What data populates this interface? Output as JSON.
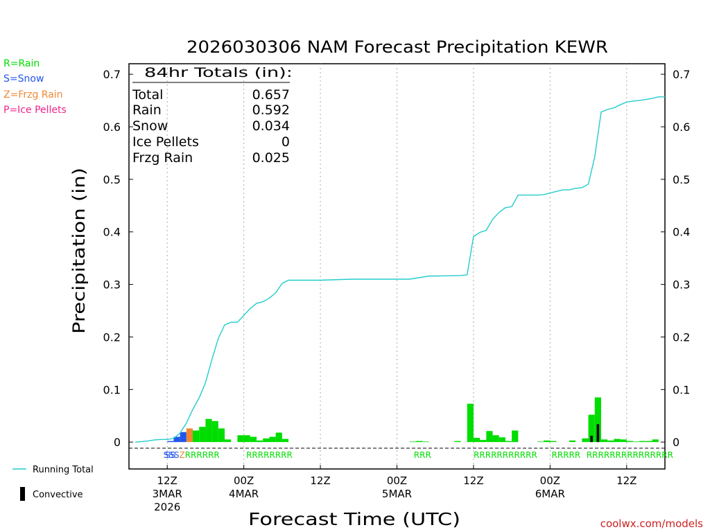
{
  "title": "2026030306 NAM Forecast Precipitation KEWR",
  "legend": {
    "rain": "R=Rain",
    "snow": "S=Snow",
    "frzg": "Z=Frzg Rain",
    "ice": "P=Ice Pellets",
    "running_total": "Running Total",
    "convective": "Convective"
  },
  "totals": {
    "header": "84hr Totals (in):",
    "rows": [
      {
        "label": "Total",
        "value": "0.657"
      },
      {
        "label": "Rain",
        "value": "0.592"
      },
      {
        "label": "Snow",
        "value": "0.034"
      },
      {
        "label": "Ice Pellets",
        "value": "0"
      },
      {
        "label": "Frzg Rain",
        "value": "0.025"
      }
    ]
  },
  "credit": "coolwx.com/models",
  "colors": {
    "rain": "#00dd00",
    "snow": "#2255ee",
    "frzg": "#ee8833",
    "ice": "#ee2288",
    "running_total": "#22cccc",
    "convective": "#000000"
  },
  "chart_data": {
    "type": "bar",
    "title": "2026030306 NAM Forecast Precipitation KEWR",
    "xlabel": "Forecast Time (UTC)",
    "ylabel": "Precipitation (in)",
    "ylim": [
      -0.0512,
      0.72
    ],
    "xlim": [
      0,
      84
    ],
    "yticks": [
      0,
      0.1,
      0.2,
      0.3,
      0.4,
      0.5,
      0.6,
      0.7
    ],
    "ytick_labels": [
      "0",
      "0.1",
      "0.2",
      "0.3",
      "0.4",
      "0.5",
      "0.6",
      "0.7"
    ],
    "xticks": [
      {
        "x": 6,
        "lines": [
          "12Z",
          "3MAR",
          "2026"
        ]
      },
      {
        "x": 18,
        "lines": [
          "00Z",
          "4MAR"
        ]
      },
      {
        "x": 30,
        "lines": [
          "12Z"
        ]
      },
      {
        "x": 42,
        "lines": [
          "00Z",
          "5MAR"
        ]
      },
      {
        "x": 54,
        "lines": [
          "12Z"
        ]
      },
      {
        "x": 66,
        "lines": [
          "00Z",
          "6MAR"
        ]
      },
      {
        "x": 78,
        "lines": [
          "12Z"
        ]
      }
    ],
    "series": [
      {
        "name": "Hourly precipitation (in)",
        "bar_width_hours": 1,
        "bars": [
          {
            "x": 7,
            "value": 0.002,
            "type": "S"
          },
          {
            "x": 8,
            "value": 0.01,
            "type": "S"
          },
          {
            "x": 9,
            "value": 0.019,
            "type": "S"
          },
          {
            "x": 10,
            "value": 0.026,
            "type": "Z"
          },
          {
            "x": 11,
            "value": 0.022,
            "type": "R"
          },
          {
            "x": 12,
            "value": 0.029,
            "type": "R"
          },
          {
            "x": 13,
            "value": 0.044,
            "type": "R"
          },
          {
            "x": 14,
            "value": 0.04,
            "type": "R"
          },
          {
            "x": 15,
            "value": 0.026,
            "type": "R"
          },
          {
            "x": 16,
            "value": 0.005,
            "type": "R"
          },
          {
            "x": 18,
            "value": 0.013,
            "type": "R"
          },
          {
            "x": 19,
            "value": 0.013,
            "type": "R"
          },
          {
            "x": 20,
            "value": 0.01,
            "type": "R"
          },
          {
            "x": 21,
            "value": 0.003,
            "type": "R"
          },
          {
            "x": 22,
            "value": 0.007,
            "type": "R"
          },
          {
            "x": 23,
            "value": 0.01,
            "type": "R"
          },
          {
            "x": 24,
            "value": 0.018,
            "type": "R"
          },
          {
            "x": 25,
            "value": 0.006,
            "type": "R"
          },
          {
            "x": 45,
            "value": 0.001,
            "type": "R"
          },
          {
            "x": 46,
            "value": 0.002,
            "type": "R"
          },
          {
            "x": 47,
            "value": 0.001,
            "type": "R"
          },
          {
            "x": 52,
            "value": 0.002,
            "type": "R"
          },
          {
            "x": 54,
            "value": 0.073,
            "type": "R"
          },
          {
            "x": 55,
            "value": 0.008,
            "type": "R"
          },
          {
            "x": 56,
            "value": 0.004,
            "type": "R"
          },
          {
            "x": 57,
            "value": 0.021,
            "type": "R"
          },
          {
            "x": 58,
            "value": 0.013,
            "type": "R"
          },
          {
            "x": 59,
            "value": 0.009,
            "type": "R"
          },
          {
            "x": 60,
            "value": 0.002,
            "type": "R"
          },
          {
            "x": 61,
            "value": 0.022,
            "type": "R"
          },
          {
            "x": 65,
            "value": 0.001,
            "type": "R"
          },
          {
            "x": 66,
            "value": 0.003,
            "type": "R"
          },
          {
            "x": 67,
            "value": 0.002,
            "type": "R"
          },
          {
            "x": 70,
            "value": 0.003,
            "type": "R"
          },
          {
            "x": 72,
            "value": 0.007,
            "type": "R"
          },
          {
            "x": 73,
            "value": 0.052,
            "type": "R"
          },
          {
            "x": 74,
            "value": 0.085,
            "type": "R"
          },
          {
            "x": 75,
            "value": 0.005,
            "type": "R"
          },
          {
            "x": 76,
            "value": 0.003,
            "type": "R"
          },
          {
            "x": 77,
            "value": 0.006,
            "type": "R"
          },
          {
            "x": 78,
            "value": 0.005,
            "type": "R"
          },
          {
            "x": 79,
            "value": 0.002,
            "type": "R"
          },
          {
            "x": 80,
            "value": 0.001,
            "type": "R"
          },
          {
            "x": 81,
            "value": 0.002,
            "type": "R"
          },
          {
            "x": 82,
            "value": 0.002,
            "type": "R"
          },
          {
            "x": 83,
            "value": 0.005,
            "type": "R"
          }
        ]
      },
      {
        "name": "Convective",
        "bars": [
          {
            "x": 73,
            "value": 0.012
          },
          {
            "x": 74,
            "value": 0.034
          }
        ]
      },
      {
        "name": "Running Total",
        "points": [
          [
            1,
            0.0
          ],
          [
            2,
            0.001
          ],
          [
            3,
            0.002
          ],
          [
            4,
            0.004
          ],
          [
            5,
            0.005
          ],
          [
            6,
            0.005
          ],
          [
            7,
            0.007
          ],
          [
            8,
            0.017
          ],
          [
            9,
            0.036
          ],
          [
            10,
            0.062
          ],
          [
            11,
            0.084
          ],
          [
            12,
            0.113
          ],
          [
            13,
            0.157
          ],
          [
            14,
            0.197
          ],
          [
            15,
            0.223
          ],
          [
            16,
            0.228
          ],
          [
            17,
            0.228
          ],
          [
            18,
            0.241
          ],
          [
            19,
            0.254
          ],
          [
            20,
            0.264
          ],
          [
            21,
            0.267
          ],
          [
            22,
            0.274
          ],
          [
            23,
            0.284
          ],
          [
            24,
            0.302
          ],
          [
            25,
            0.308
          ],
          [
            26,
            0.308
          ],
          [
            30,
            0.308
          ],
          [
            35,
            0.31
          ],
          [
            44,
            0.31
          ],
          [
            45,
            0.312
          ],
          [
            46,
            0.314
          ],
          [
            47,
            0.316
          ],
          [
            48,
            0.316
          ],
          [
            52,
            0.317
          ],
          [
            53,
            0.318
          ],
          [
            54,
            0.391
          ],
          [
            55,
            0.399
          ],
          [
            56,
            0.403
          ],
          [
            57,
            0.424
          ],
          [
            58,
            0.437
          ],
          [
            59,
            0.446
          ],
          [
            60,
            0.448
          ],
          [
            61,
            0.47
          ],
          [
            62,
            0.47
          ],
          [
            64,
            0.47
          ],
          [
            65,
            0.471
          ],
          [
            66,
            0.474
          ],
          [
            67,
            0.477
          ],
          [
            68,
            0.48
          ],
          [
            69,
            0.48
          ],
          [
            70,
            0.483
          ],
          [
            71,
            0.484
          ],
          [
            72,
            0.491
          ],
          [
            73,
            0.543
          ],
          [
            74,
            0.628
          ],
          [
            75,
            0.633
          ],
          [
            76,
            0.636
          ],
          [
            77,
            0.642
          ],
          [
            78,
            0.647
          ],
          [
            79,
            0.649
          ],
          [
            80,
            0.65
          ],
          [
            81,
            0.652
          ],
          [
            82,
            0.654
          ],
          [
            83,
            0.657
          ],
          [
            84,
            0.657
          ]
        ]
      }
    ],
    "type_labels": [
      {
        "x": 6.5,
        "text": "SS",
        "type": "S"
      },
      {
        "x": 9.8,
        "text": "SSSZRRRRRR",
        "type": "mixed"
      },
      {
        "x": 22,
        "text": "RRRRRRRR",
        "type": "R"
      },
      {
        "x": 46,
        "text": "RRR",
        "type": "R"
      },
      {
        "x": 59,
        "text": "RRRRRRRRRRR",
        "type": "R"
      },
      {
        "x": 68.5,
        "text": "RRRRR",
        "type": "R"
      },
      {
        "x": 78.5,
        "text": "RRRRRRRRRRRRRRR",
        "type": "R"
      }
    ]
  }
}
